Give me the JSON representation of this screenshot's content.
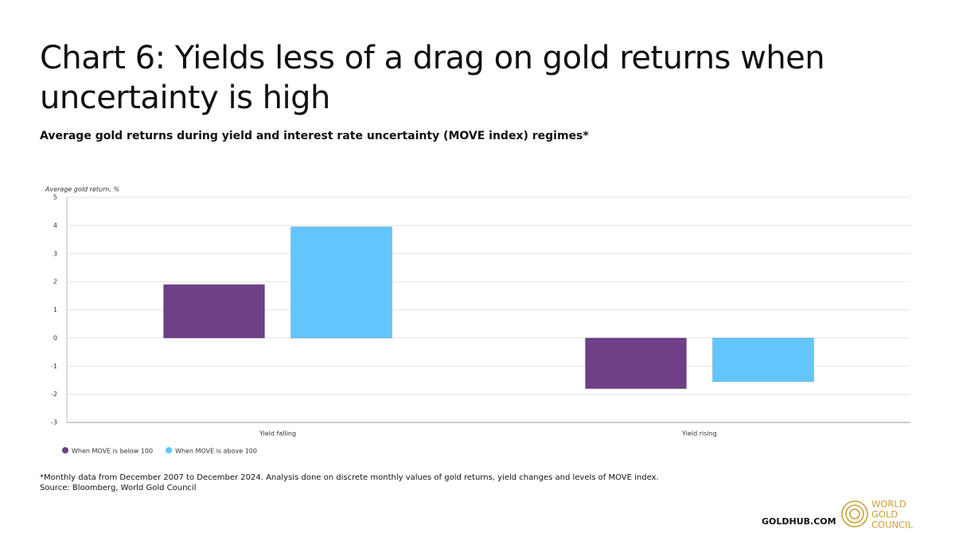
{
  "chart_data": {
    "type": "bar",
    "title": "Chart 6: Yields less of a drag on gold returns when uncertainty is high",
    "subtitle": "Average gold returns during yield and interest rate uncertainty (MOVE index) regimes*",
    "y_label": "Average gold return, %",
    "categories": [
      "Yield falling",
      "Yield rising"
    ],
    "series": [
      {
        "name": "When MOVE is below 100",
        "color": "#6f3f87",
        "values": [
          1.9,
          -1.8
        ]
      },
      {
        "name": "When MOVE is above 100",
        "color": "#62c6fd",
        "values": [
          3.95,
          -1.55
        ]
      }
    ],
    "ylim": [
      -3,
      5
    ],
    "yticks": [
      -3,
      -2,
      -1,
      0,
      1,
      2,
      3,
      4,
      5
    ],
    "grid": true,
    "legend": "bottom-left"
  },
  "footnote": "*Monthly data from December 2007 to December 2024. Analysis done on discrete monthly values of gold returns, yield changes and levels of MOVE index.",
  "source": "Source: Bloomberg, World Gold Council",
  "website": "GOLDHUB.COM",
  "logo": [
    "WORLD",
    "GOLD",
    "COUNCIL"
  ]
}
